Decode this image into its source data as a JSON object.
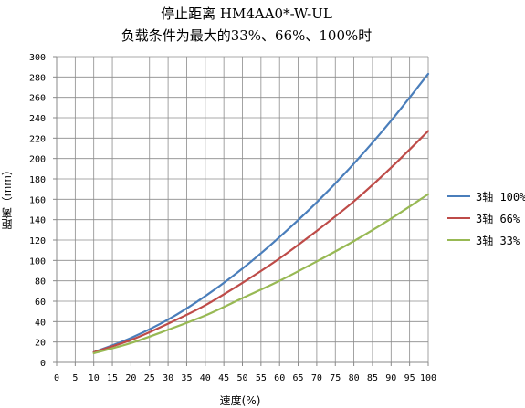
{
  "chart_data": {
    "type": "line",
    "title": "停止距离 HM4AA0*-W-UL",
    "subtitle": "负载条件为最大的33%、66%、100%时",
    "xlabel": "速度(%)",
    "ylabel": "距离（mm）",
    "xlim": [
      0,
      100
    ],
    "ylim": [
      0,
      300
    ],
    "xticks": [
      "0",
      "5",
      "10",
      "15",
      "20",
      "25",
      "30",
      "35",
      "40",
      "45",
      "50",
      "55",
      "60",
      "65",
      "70",
      "75",
      "80",
      "85",
      "90",
      "95",
      "100"
    ],
    "yticks": [
      "0",
      "20",
      "40",
      "60",
      "80",
      "100",
      "120",
      "140",
      "160",
      "180",
      "200",
      "220",
      "240",
      "260",
      "280",
      "300"
    ],
    "grid": true,
    "legend_position": "right",
    "x": [
      10,
      20,
      30,
      40,
      50,
      60,
      70,
      80,
      90,
      100
    ],
    "series": [
      {
        "name": "3轴 100%",
        "color": "#4a7ebb",
        "values": [
          10,
          24,
          42,
          65,
          92,
          123,
          157,
          195,
          237,
          283
        ]
      },
      {
        "name": "3轴 66%",
        "color": "#be4b48",
        "values": [
          10,
          22,
          38,
          56,
          78,
          102,
          129,
          158,
          191,
          227
        ]
      },
      {
        "name": "3轴 33%",
        "color": "#98b954",
        "values": [
          9,
          19,
          32,
          46,
          63,
          80,
          99,
          119,
          141,
          165
        ]
      }
    ]
  }
}
